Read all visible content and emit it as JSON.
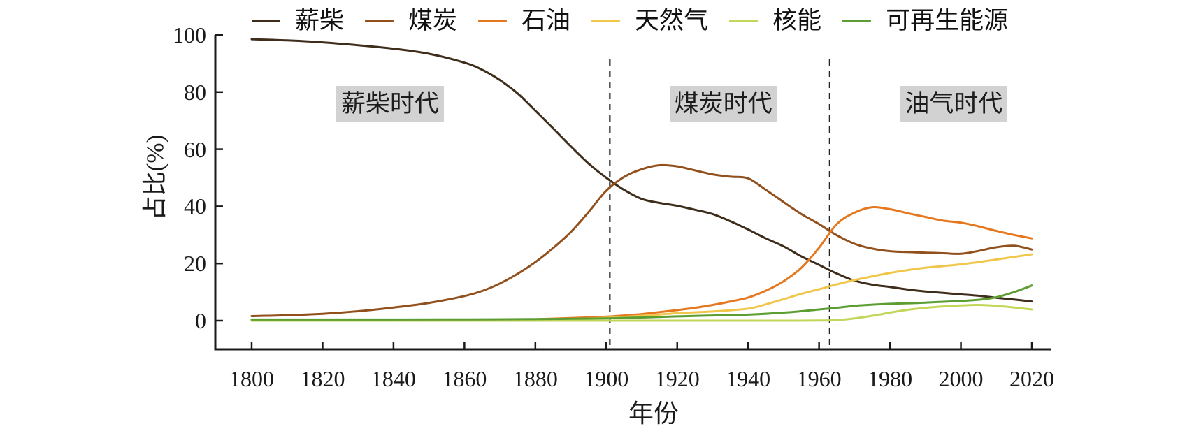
{
  "y_axis": {
    "title": "占比(%)",
    "ticks": [
      0,
      20,
      40,
      60,
      80,
      100
    ]
  },
  "x_axis": {
    "title": "年份",
    "ticks": [
      1800,
      1820,
      1840,
      1860,
      1880,
      1900,
      1920,
      1940,
      1960,
      1980,
      2000,
      2020
    ]
  },
  "era_labels": [
    {
      "key": "firewood-era",
      "label": "薪柴时代",
      "year": 1839
    },
    {
      "key": "coal-era",
      "label": "煤炭时代",
      "year": 1933
    },
    {
      "key": "oil-gas-era",
      "label": "油气时代",
      "year": 1998
    }
  ],
  "dividers": [
    {
      "year": 1901
    },
    {
      "year": 1963
    }
  ],
  "chart_data": {
    "type": "line",
    "title": "",
    "xlabel": "年份",
    "ylabel": "占比(%)",
    "x_range": [
      1800,
      2020
    ],
    "ylim": [
      0,
      100
    ],
    "legend_position": "top",
    "grid": false,
    "series": [
      {
        "key": "firewood",
        "name": "薪柴",
        "color": "#3f2d1b",
        "points": [
          [
            1800,
            98.5
          ],
          [
            1810,
            98.1
          ],
          [
            1820,
            97.4
          ],
          [
            1830,
            96.4
          ],
          [
            1840,
            95.2
          ],
          [
            1850,
            93.4
          ],
          [
            1860,
            90.3
          ],
          [
            1865,
            87.8
          ],
          [
            1870,
            84.2
          ],
          [
            1875,
            79.5
          ],
          [
            1880,
            73.5
          ],
          [
            1885,
            67.3
          ],
          [
            1890,
            61
          ],
          [
            1895,
            55
          ],
          [
            1900,
            50
          ],
          [
            1905,
            45.8
          ],
          [
            1910,
            42.6
          ],
          [
            1915,
            41.2
          ],
          [
            1920,
            40.2
          ],
          [
            1925,
            38.8
          ],
          [
            1930,
            37.3
          ],
          [
            1935,
            34.8
          ],
          [
            1940,
            31.9
          ],
          [
            1945,
            28.8
          ],
          [
            1950,
            26
          ],
          [
            1955,
            22.5
          ],
          [
            1960,
            19.5
          ],
          [
            1965,
            16.5
          ],
          [
            1970,
            14
          ],
          [
            1975,
            12.6
          ],
          [
            1980,
            11.8
          ],
          [
            1985,
            10.9
          ],
          [
            1990,
            10.2
          ],
          [
            1995,
            9.7
          ],
          [
            2000,
            9.2
          ],
          [
            2005,
            8.7
          ],
          [
            2010,
            8
          ],
          [
            2015,
            7.4
          ],
          [
            2020,
            6.7
          ]
        ]
      },
      {
        "key": "coal",
        "name": "煤炭",
        "color": "#91501c",
        "points": [
          [
            1800,
            1.6
          ],
          [
            1810,
            1.9
          ],
          [
            1820,
            2.4
          ],
          [
            1830,
            3.3
          ],
          [
            1840,
            4.6
          ],
          [
            1850,
            6.2
          ],
          [
            1860,
            8.6
          ],
          [
            1865,
            10.4
          ],
          [
            1870,
            13
          ],
          [
            1875,
            16.4
          ],
          [
            1880,
            20.5
          ],
          [
            1885,
            25.4
          ],
          [
            1890,
            31
          ],
          [
            1895,
            38
          ],
          [
            1900,
            45.5
          ],
          [
            1905,
            50.3
          ],
          [
            1910,
            53
          ],
          [
            1915,
            54.4
          ],
          [
            1920,
            54
          ],
          [
            1925,
            52.6
          ],
          [
            1930,
            51.2
          ],
          [
            1935,
            50.4
          ],
          [
            1940,
            49.8
          ],
          [
            1945,
            45.8
          ],
          [
            1950,
            41.5
          ],
          [
            1955,
            37.3
          ],
          [
            1960,
            33.8
          ],
          [
            1965,
            29.9
          ],
          [
            1970,
            26.9
          ],
          [
            1975,
            25.2
          ],
          [
            1980,
            24.3
          ],
          [
            1985,
            24
          ],
          [
            1990,
            23.8
          ],
          [
            1995,
            23.6
          ],
          [
            2000,
            23.4
          ],
          [
            2005,
            24.4
          ],
          [
            2010,
            25.7
          ],
          [
            2015,
            26.2
          ],
          [
            2020,
            24.9
          ]
        ]
      },
      {
        "key": "oil",
        "name": "石油",
        "color": "#e5781f",
        "points": [
          [
            1800,
            0.1
          ],
          [
            1820,
            0.1
          ],
          [
            1840,
            0.15
          ],
          [
            1860,
            0.2
          ],
          [
            1870,
            0.3
          ],
          [
            1880,
            0.5
          ],
          [
            1890,
            0.9
          ],
          [
            1900,
            1.4
          ],
          [
            1905,
            1.8
          ],
          [
            1910,
            2.3
          ],
          [
            1915,
            3
          ],
          [
            1920,
            3.7
          ],
          [
            1925,
            4.5
          ],
          [
            1930,
            5.5
          ],
          [
            1935,
            6.7
          ],
          [
            1940,
            8.1
          ],
          [
            1945,
            10.5
          ],
          [
            1950,
            13.8
          ],
          [
            1955,
            18.5
          ],
          [
            1960,
            25.5
          ],
          [
            1965,
            33.8
          ],
          [
            1970,
            37.8
          ],
          [
            1975,
            39.7
          ],
          [
            1980,
            39
          ],
          [
            1985,
            37.6
          ],
          [
            1990,
            36.3
          ],
          [
            1995,
            35
          ],
          [
            2000,
            34.3
          ],
          [
            2005,
            33
          ],
          [
            2010,
            31.4
          ],
          [
            2015,
            30
          ],
          [
            2020,
            28.8
          ]
        ]
      },
      {
        "key": "natural-gas",
        "name": "天然气",
        "color": "#f0c64b",
        "points": [
          [
            1800,
            0.05
          ],
          [
            1820,
            0.05
          ],
          [
            1840,
            0.1
          ],
          [
            1860,
            0.15
          ],
          [
            1880,
            0.3
          ],
          [
            1890,
            0.6
          ],
          [
            1900,
            1
          ],
          [
            1910,
            1.7
          ],
          [
            1920,
            2.6
          ],
          [
            1930,
            3.2
          ],
          [
            1940,
            4.2
          ],
          [
            1945,
            5.7
          ],
          [
            1950,
            7.5
          ],
          [
            1955,
            9.4
          ],
          [
            1960,
            11
          ],
          [
            1965,
            12.7
          ],
          [
            1970,
            14.2
          ],
          [
            1975,
            15.5
          ],
          [
            1980,
            16.7
          ],
          [
            1985,
            17.7
          ],
          [
            1990,
            18.5
          ],
          [
            1995,
            19.1
          ],
          [
            2000,
            19.7
          ],
          [
            2005,
            20.5
          ],
          [
            2010,
            21.4
          ],
          [
            2015,
            22.3
          ],
          [
            2020,
            23.2
          ]
        ]
      },
      {
        "key": "nuclear",
        "name": "核能",
        "color": "#c3d65a",
        "points": [
          [
            1800,
            0
          ],
          [
            1850,
            0
          ],
          [
            1900,
            0
          ],
          [
            1940,
            0
          ],
          [
            1950,
            0
          ],
          [
            1960,
            0.05
          ],
          [
            1965,
            0.2
          ],
          [
            1970,
            0.8
          ],
          [
            1975,
            1.7
          ],
          [
            1980,
            2.8
          ],
          [
            1985,
            3.8
          ],
          [
            1990,
            4.5
          ],
          [
            1995,
            5
          ],
          [
            2000,
            5.3
          ],
          [
            2005,
            5.5
          ],
          [
            2010,
            5.2
          ],
          [
            2015,
            4.6
          ],
          [
            2020,
            3.9
          ]
        ]
      },
      {
        "key": "renewables",
        "name": "可再生能源",
        "color": "#5d9e33",
        "points": [
          [
            1800,
            0.4
          ],
          [
            1820,
            0.4
          ],
          [
            1840,
            0.4
          ],
          [
            1860,
            0.45
          ],
          [
            1880,
            0.55
          ],
          [
            1890,
            0.65
          ],
          [
            1900,
            0.8
          ],
          [
            1910,
            1.1
          ],
          [
            1920,
            1.5
          ],
          [
            1930,
            1.8
          ],
          [
            1940,
            2.1
          ],
          [
            1950,
            2.8
          ],
          [
            1955,
            3.3
          ],
          [
            1960,
            3.9
          ],
          [
            1965,
            4.5
          ],
          [
            1970,
            5.2
          ],
          [
            1975,
            5.6
          ],
          [
            1980,
            5.9
          ],
          [
            1985,
            6.1
          ],
          [
            1990,
            6.3
          ],
          [
            1995,
            6.6
          ],
          [
            2000,
            6.9
          ],
          [
            2005,
            7.3
          ],
          [
            2010,
            8.2
          ],
          [
            2015,
            10
          ],
          [
            2020,
            12.3
          ]
        ]
      }
    ]
  }
}
